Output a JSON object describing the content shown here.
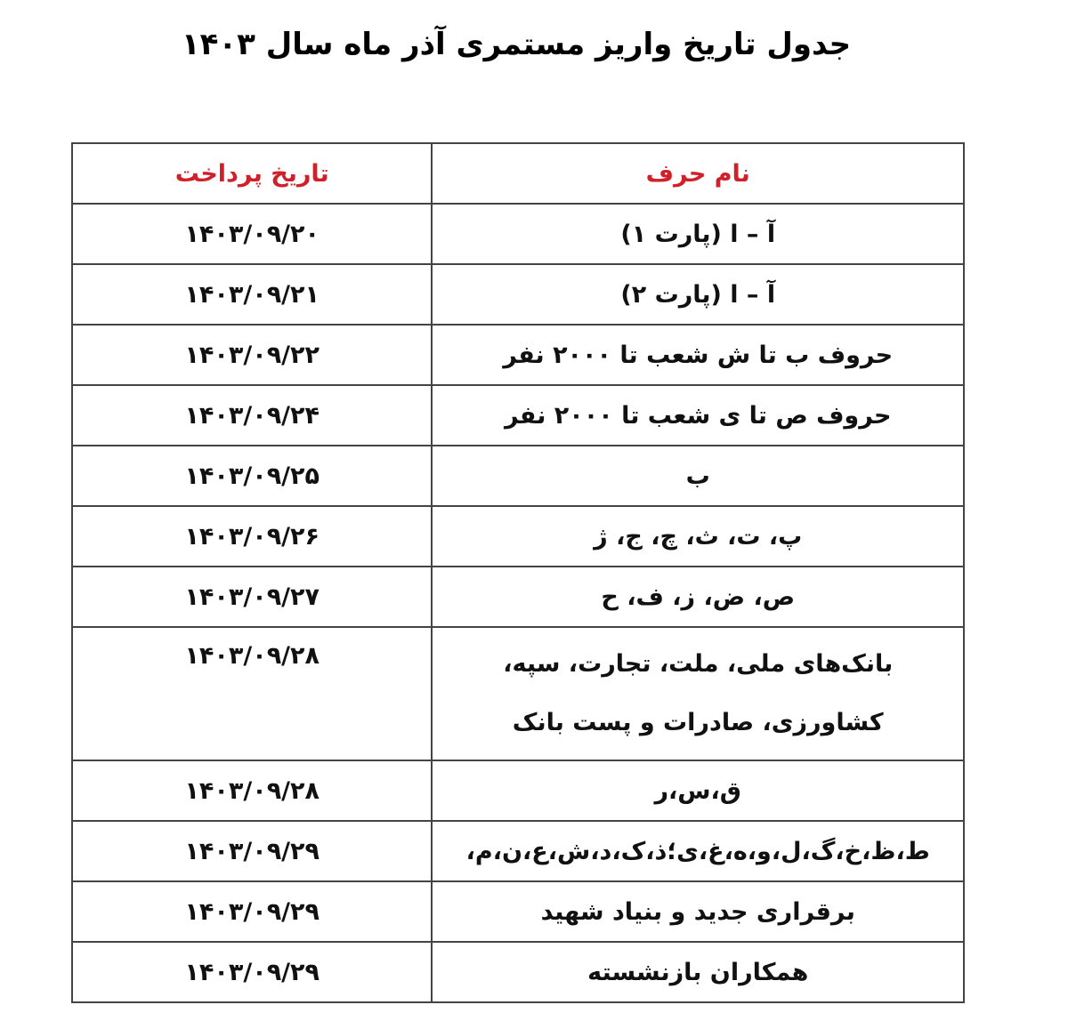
{
  "title": "جدول تاریخ واریز مستمری آذر ماه سال ۱۴۰۳",
  "table": {
    "headers": {
      "name": "نام حرف",
      "date": "تاریخ پرداخت"
    },
    "header_color": "#d0202a",
    "rows": [
      {
        "name": "آ – ا (پارت ۱)",
        "date": "۱۴۰۳/۰۹/۲۰"
      },
      {
        "name": "آ – ا (پارت ۲)",
        "date": "۱۴۰۳/۰۹/۲۱"
      },
      {
        "name": "حروف ب تا ش شعب تا ۲۰۰۰ نفر",
        "date": "۱۴۰۳/۰۹/۲۲"
      },
      {
        "name": "حروف ص تا ی شعب تا ۲۰۰۰ نفر",
        "date": "۱۴۰۳/۰۹/۲۴"
      },
      {
        "name": "ب",
        "date": "۱۴۰۳/۰۹/۲۵"
      },
      {
        "name": "پ، ت، ث، چ، ج، ژ",
        "date": "۱۴۰۳/۰۹/۲۶"
      },
      {
        "name": "ص، ض، ز، ف، ح",
        "date": "۱۴۰۳/۰۹/۲۷"
      },
      {
        "name": "بانک‌های ملی، ملت، تجارت، سپه،",
        "name2": "کشاورزی، صادرات و پست بانک",
        "date": "۱۴۰۳/۰۹/۲۸"
      },
      {
        "name": "ق،س،ر",
        "date": "۱۴۰۳/۰۹/۲۸"
      },
      {
        "name": "ط،ظ،خ،گ،ل،و،ه،غ،ی؛ذ،ک،د،ش،ع،ن،م،",
        "date": "۱۴۰۳/۰۹/۲۹"
      },
      {
        "name": "برقراری جدید و بنیاد شهید",
        "date": "۱۴۰۳/۰۹/۲۹"
      },
      {
        "name": "همکاران بازنشسته",
        "date": "۱۴۰۳/۰۹/۲۹"
      }
    ]
  }
}
